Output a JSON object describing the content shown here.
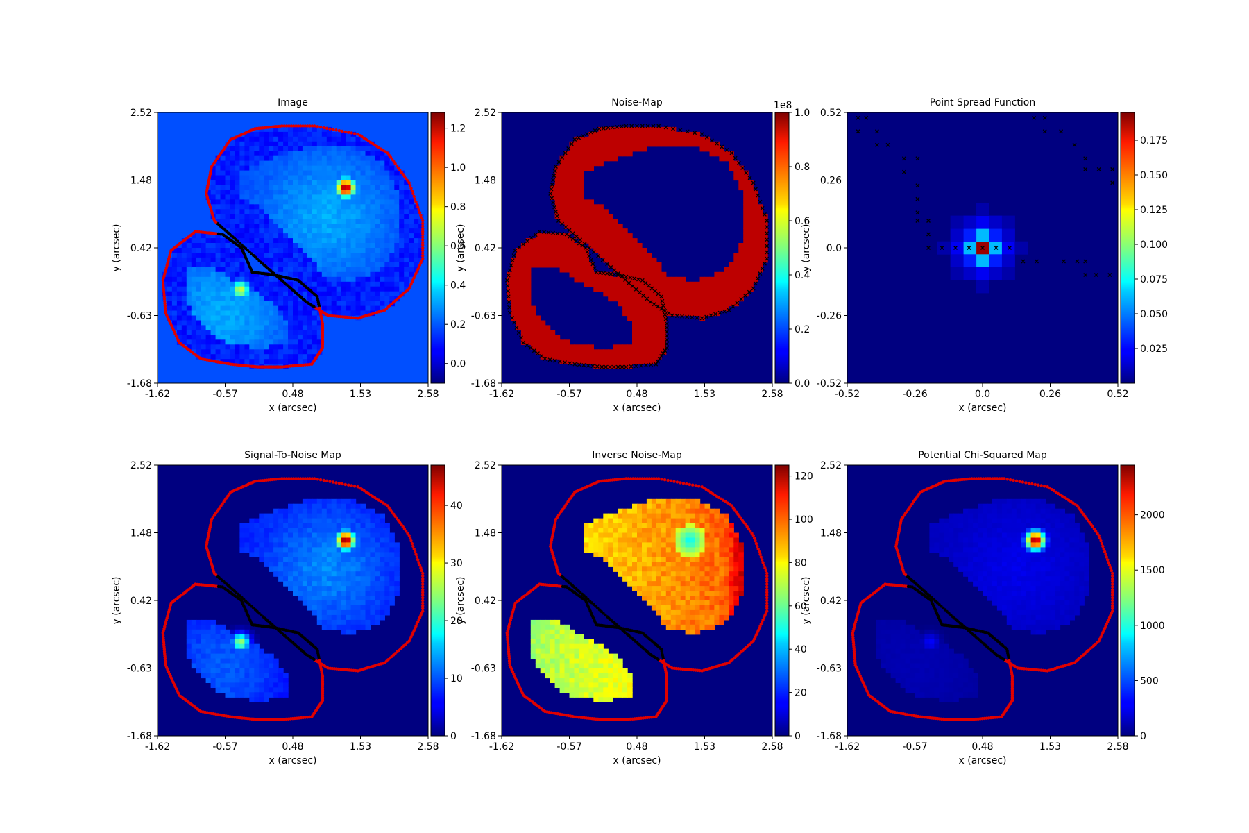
{
  "figure": {
    "title": "",
    "colormap": "jet"
  },
  "chart_data": [
    {
      "type": "heatmap",
      "title": "Image",
      "xlabel": "x (arcsec)",
      "ylabel": "y (arcsec)",
      "xlim": [
        -1.62,
        2.58
      ],
      "ylim": [
        -1.68,
        2.52
      ],
      "x_ticks": [
        "-1.62",
        "-0.57",
        "0.48",
        "1.53",
        "2.58"
      ],
      "y_ticks": [
        "2.52",
        "1.48",
        "0.42",
        "-0.63",
        "-1.68"
      ],
      "colorbar": {
        "range": [
          -0.1,
          1.28
        ],
        "ticks": [
          "1.2",
          "1.0",
          "0.8",
          "0.6",
          "0.4",
          "0.2",
          "0.0"
        ],
        "tick_values": [
          1.2,
          1.0,
          0.8,
          0.6,
          0.4,
          0.2,
          0.0
        ],
        "exponent": ""
      },
      "background_level": 0.18,
      "mask_border": "red-black dotted outline around two lensed arcs",
      "features": [
        {
          "kind": "arc",
          "x": 1.0,
          "y": 0.9,
          "peak": 0.3
        },
        {
          "kind": "blob",
          "x": 1.3,
          "y": 1.35,
          "peak": 1.25
        },
        {
          "kind": "arc",
          "x": -0.6,
          "y": -0.6,
          "peak": 0.3
        },
        {
          "kind": "blob",
          "x": -0.33,
          "y": -0.23,
          "peak": 0.7
        }
      ]
    },
    {
      "type": "heatmap",
      "title": "Noise-Map",
      "xlabel": "x (arcsec)",
      "ylabel": "y (arcsec)",
      "xlim": [
        -1.62,
        2.58
      ],
      "ylim": [
        -1.68,
        2.52
      ],
      "x_ticks": [
        "-1.62",
        "-0.57",
        "0.48",
        "1.53",
        "2.58"
      ],
      "y_ticks": [
        "2.52",
        "1.48",
        "0.42",
        "-0.63",
        "-1.68"
      ],
      "colorbar": {
        "range": [
          0,
          1.0
        ],
        "ticks": [
          "1.0",
          "0.8",
          "0.6",
          "0.4",
          "0.2",
          "0.0"
        ],
        "tick_values": [
          1.0,
          0.8,
          0.6,
          0.4,
          0.2,
          0.0
        ],
        "exponent": "1e8"
      },
      "background_level": 0.0,
      "band_level": 1.0,
      "mask_border": "black crosses along the edge of the high-noise band"
    },
    {
      "type": "heatmap",
      "title": "Point Spread Function",
      "xlabel": "x (arcsec)",
      "ylabel": "y (arcsec)",
      "xlim": [
        -0.52,
        0.52
      ],
      "ylim": [
        -0.52,
        0.52
      ],
      "x_ticks": [
        "-0.52",
        "-0.26",
        "0.0",
        "0.26",
        "0.52"
      ],
      "y_ticks": [
        "0.52",
        "0.26",
        "0.0",
        "-0.26",
        "-0.52"
      ],
      "colorbar": {
        "range": [
          0.0,
          0.195
        ],
        "ticks": [
          "0.175",
          "0.150",
          "0.125",
          "0.100",
          "0.075",
          "0.050",
          "0.025"
        ],
        "tick_values": [
          0.175,
          0.15,
          0.125,
          0.1,
          0.075,
          0.05,
          0.025
        ],
        "exponent": ""
      },
      "background_level": 0.0,
      "psf_peak": 0.19,
      "psf_cells": [
        {
          "dx": 0,
          "dy": 0,
          "v": 0.19
        },
        {
          "dx": 1,
          "dy": 0,
          "v": 0.06
        },
        {
          "dx": -1,
          "dy": 0,
          "v": 0.06
        },
        {
          "dx": 0,
          "dy": 1,
          "v": 0.06
        },
        {
          "dx": 0,
          "dy": -1,
          "v": 0.06
        },
        {
          "dx": 1,
          "dy": 1,
          "v": 0.03
        },
        {
          "dx": -1,
          "dy": 1,
          "v": 0.03
        },
        {
          "dx": 1,
          "dy": -1,
          "v": 0.03
        },
        {
          "dx": -1,
          "dy": -1,
          "v": 0.03
        },
        {
          "dx": 2,
          "dy": 0,
          "v": 0.022
        },
        {
          "dx": -2,
          "dy": 0,
          "v": 0.022
        },
        {
          "dx": 0,
          "dy": 2,
          "v": 0.022
        },
        {
          "dx": 0,
          "dy": -2,
          "v": 0.022
        },
        {
          "dx": 2,
          "dy": 1,
          "v": 0.014
        },
        {
          "dx": -2,
          "dy": 1,
          "v": 0.014
        },
        {
          "dx": 2,
          "dy": -1,
          "v": 0.014
        },
        {
          "dx": -2,
          "dy": -1,
          "v": 0.014
        },
        {
          "dx": 1,
          "dy": 2,
          "v": 0.014
        },
        {
          "dx": -1,
          "dy": 2,
          "v": 0.014
        },
        {
          "dx": 1,
          "dy": -2,
          "v": 0.014
        },
        {
          "dx": -1,
          "dy": -2,
          "v": 0.014
        },
        {
          "dx": 3,
          "dy": 0,
          "v": 0.008
        },
        {
          "dx": -3,
          "dy": 0,
          "v": 0.008
        },
        {
          "dx": 0,
          "dy": 3,
          "v": 0.008
        },
        {
          "dx": 0,
          "dy": -3,
          "v": 0.008
        },
        {
          "dx": 2,
          "dy": 2,
          "v": 0.008
        },
        {
          "dx": -2,
          "dy": 2,
          "v": 0.008
        },
        {
          "dx": 2,
          "dy": -2,
          "v": 0.008
        },
        {
          "dx": -2,
          "dy": -2,
          "v": 0.008
        }
      ],
      "mask_border": "scattered black crosses tracing the mask edge"
    },
    {
      "type": "heatmap",
      "title": "Signal-To-Noise Map",
      "xlabel": "x (arcsec)",
      "ylabel": "y (arcsec)",
      "xlim": [
        -1.62,
        2.58
      ],
      "ylim": [
        -1.68,
        2.52
      ],
      "x_ticks": [
        "-1.62",
        "-0.57",
        "0.48",
        "1.53",
        "2.58"
      ],
      "y_ticks": [
        "2.52",
        "1.48",
        "0.42",
        "-0.63",
        "-1.68"
      ],
      "colorbar": {
        "range": [
          0,
          47
        ],
        "ticks": [
          "40",
          "30",
          "20",
          "10",
          "0"
        ],
        "tick_values": [
          40,
          30,
          20,
          10,
          0
        ],
        "exponent": ""
      },
      "background_level": 0,
      "features": [
        {
          "kind": "arc",
          "x": 1.0,
          "y": 0.9,
          "peak": 12
        },
        {
          "kind": "blob",
          "x": 1.3,
          "y": 1.35,
          "peak": 47
        },
        {
          "kind": "arc",
          "x": -0.6,
          "y": -0.6,
          "peak": 10
        },
        {
          "kind": "blob",
          "x": -0.33,
          "y": -0.23,
          "peak": 25
        }
      ],
      "mask_border": "red-black dotted outline around two lensed arcs"
    },
    {
      "type": "heatmap",
      "title": "Inverse Noise-Map",
      "xlabel": "x (arcsec)",
      "ylabel": "y (arcsec)",
      "xlim": [
        -1.62,
        2.58
      ],
      "ylim": [
        -1.68,
        2.52
      ],
      "x_ticks": [
        "-1.62",
        "-0.57",
        "0.48",
        "1.53",
        "2.58"
      ],
      "y_ticks": [
        "2.52",
        "1.48",
        "0.42",
        "-0.63",
        "-1.68"
      ],
      "colorbar": {
        "range": [
          0,
          125
        ],
        "ticks": [
          "120",
          "100",
          "80",
          "60",
          "40",
          "20",
          "0"
        ],
        "tick_values": [
          120,
          100,
          80,
          60,
          40,
          20,
          0
        ],
        "exponent": ""
      },
      "background_level": 0,
      "features": [
        {
          "kind": "arc",
          "x": 1.2,
          "y": 1.0,
          "peak": 85
        },
        {
          "kind": "arc",
          "x": -0.75,
          "y": -0.75,
          "peak": 75
        }
      ],
      "mask_border": "red-black dotted outline around two lensed arcs"
    },
    {
      "type": "heatmap",
      "title": "Potential Chi-Squared Map",
      "xlabel": "x (arcsec)",
      "ylabel": "y (arcsec)",
      "xlim": [
        -1.62,
        2.58
      ],
      "ylim": [
        -1.68,
        2.52
      ],
      "x_ticks": [
        "-1.62",
        "-0.57",
        "0.48",
        "1.53",
        "2.58"
      ],
      "y_ticks": [
        "2.52",
        "1.48",
        "0.42",
        "-0.63",
        "-1.68"
      ],
      "colorbar": {
        "range": [
          0,
          2450
        ],
        "ticks": [
          "2000",
          "1500",
          "1000",
          "500",
          "0"
        ],
        "tick_values": [
          2000,
          1500,
          1000,
          500,
          0
        ],
        "exponent": ""
      },
      "background_level": 0,
      "features": [
        {
          "kind": "arc",
          "x": 1.0,
          "y": 0.9,
          "peak": 250
        },
        {
          "kind": "blob",
          "x": 1.3,
          "y": 1.35,
          "peak": 2400
        },
        {
          "kind": "arc",
          "x": -0.6,
          "y": -0.6,
          "peak": 120
        },
        {
          "kind": "blob",
          "x": -0.33,
          "y": -0.23,
          "peak": 300
        }
      ],
      "mask_border": "red-black dotted outline around two lensed arcs"
    }
  ]
}
